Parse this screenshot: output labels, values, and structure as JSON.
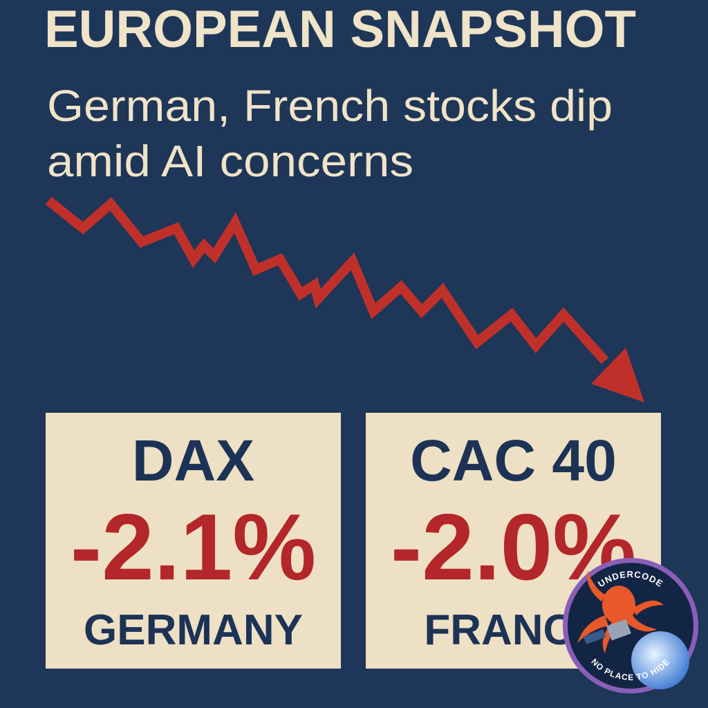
{
  "header": {
    "title": "EUROPEAN SNAPSHOT",
    "subtitle_lines": [
      "German, French stocks dip",
      "amid AI concerns"
    ]
  },
  "cards": [
    {
      "index": "DAX",
      "change": "-2.1%",
      "country": "GERMANY"
    },
    {
      "index": "CAC 40",
      "change": "-2.0%",
      "country": "FRANCE"
    }
  ],
  "badge": {
    "top": "UNDERCODE",
    "bottom": "NO PLACE TO HIDE"
  }
}
